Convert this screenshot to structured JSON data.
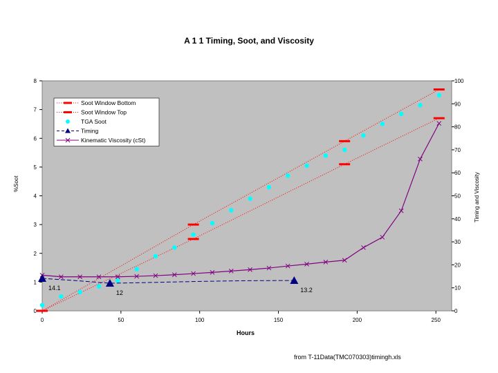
{
  "chart_data": {
    "type": "line",
    "title": "A 1 1 Timing, Soot, and Viscosity",
    "xlabel": "Hours",
    "ylabel_left": "%Soot",
    "ylabel_right": "Timing and Viscosity",
    "xlim": [
      0,
      260
    ],
    "ylim_left": [
      0,
      8
    ],
    "ylim_right": [
      0,
      100
    ],
    "x_ticks": [
      0,
      50,
      100,
      150,
      200,
      250
    ],
    "y_ticks_left": [
      0,
      1,
      2,
      3,
      4,
      5,
      6,
      7,
      8
    ],
    "y_ticks_right": [
      0,
      10,
      20,
      30,
      40,
      50,
      60,
      70,
      80,
      90,
      100
    ],
    "grid": false,
    "legend_position": "top-left",
    "series": [
      {
        "name": "Soot Window Bottom",
        "axis": "left",
        "style": "dash-marker-dotted",
        "color": "#ff0000",
        "x": [
          0,
          96,
          192,
          252
        ],
        "y": [
          0,
          2.5,
          5.1,
          6.7
        ]
      },
      {
        "name": "Soot Window Top",
        "axis": "left",
        "style": "dash-marker-dotted",
        "color": "#ff0000",
        "x": [
          0,
          96,
          192,
          252
        ],
        "y": [
          0,
          3.0,
          5.9,
          7.7
        ]
      },
      {
        "name": "TGA Soot",
        "axis": "left",
        "style": "circle-marker",
        "color": "#00ffff",
        "x": [
          0,
          12,
          24,
          36,
          48,
          60,
          72,
          84,
          96,
          108,
          120,
          132,
          144,
          156,
          168,
          180,
          192,
          204,
          216,
          228,
          240,
          252
        ],
        "y": [
          0.2,
          0.5,
          0.65,
          0.85,
          1.05,
          1.45,
          1.9,
          2.2,
          2.65,
          3.05,
          3.5,
          3.9,
          4.3,
          4.7,
          5.05,
          5.4,
          5.6,
          6.1,
          6.5,
          6.85,
          7.15,
          7.5
        ]
      },
      {
        "name": "Timing",
        "axis": "right",
        "style": "triangle-dashed",
        "color": "#000080",
        "x": [
          0,
          43,
          160
        ],
        "y": [
          14.1,
          12,
          13.2
        ],
        "line_x": [
          0,
          20,
          43,
          60,
          100,
          130,
          160
        ],
        "line_y": [
          14.1,
          13.2,
          12,
          12.2,
          12.8,
          13.1,
          13.2
        ],
        "labels": [
          "14.1",
          "12",
          "13.2"
        ]
      },
      {
        "name": "Kinematic Viscosity (cSt)",
        "axis": "right",
        "style": "x-marker-solid",
        "color": "#800080",
        "x": [
          0,
          12,
          24,
          36,
          48,
          60,
          72,
          84,
          96,
          108,
          120,
          132,
          144,
          156,
          168,
          180,
          192,
          204,
          216,
          228,
          240,
          252
        ],
        "y": [
          15.5,
          14.8,
          14.8,
          14.8,
          14.8,
          15.0,
          15.3,
          15.7,
          16.2,
          16.7,
          17.3,
          17.9,
          18.6,
          19.5,
          20.3,
          21.2,
          22.0,
          27.5,
          32.0,
          43.5,
          66.0,
          81.5
        ]
      }
    ]
  },
  "source_note": "from T-11Data(TMC070303)timingh.xls"
}
